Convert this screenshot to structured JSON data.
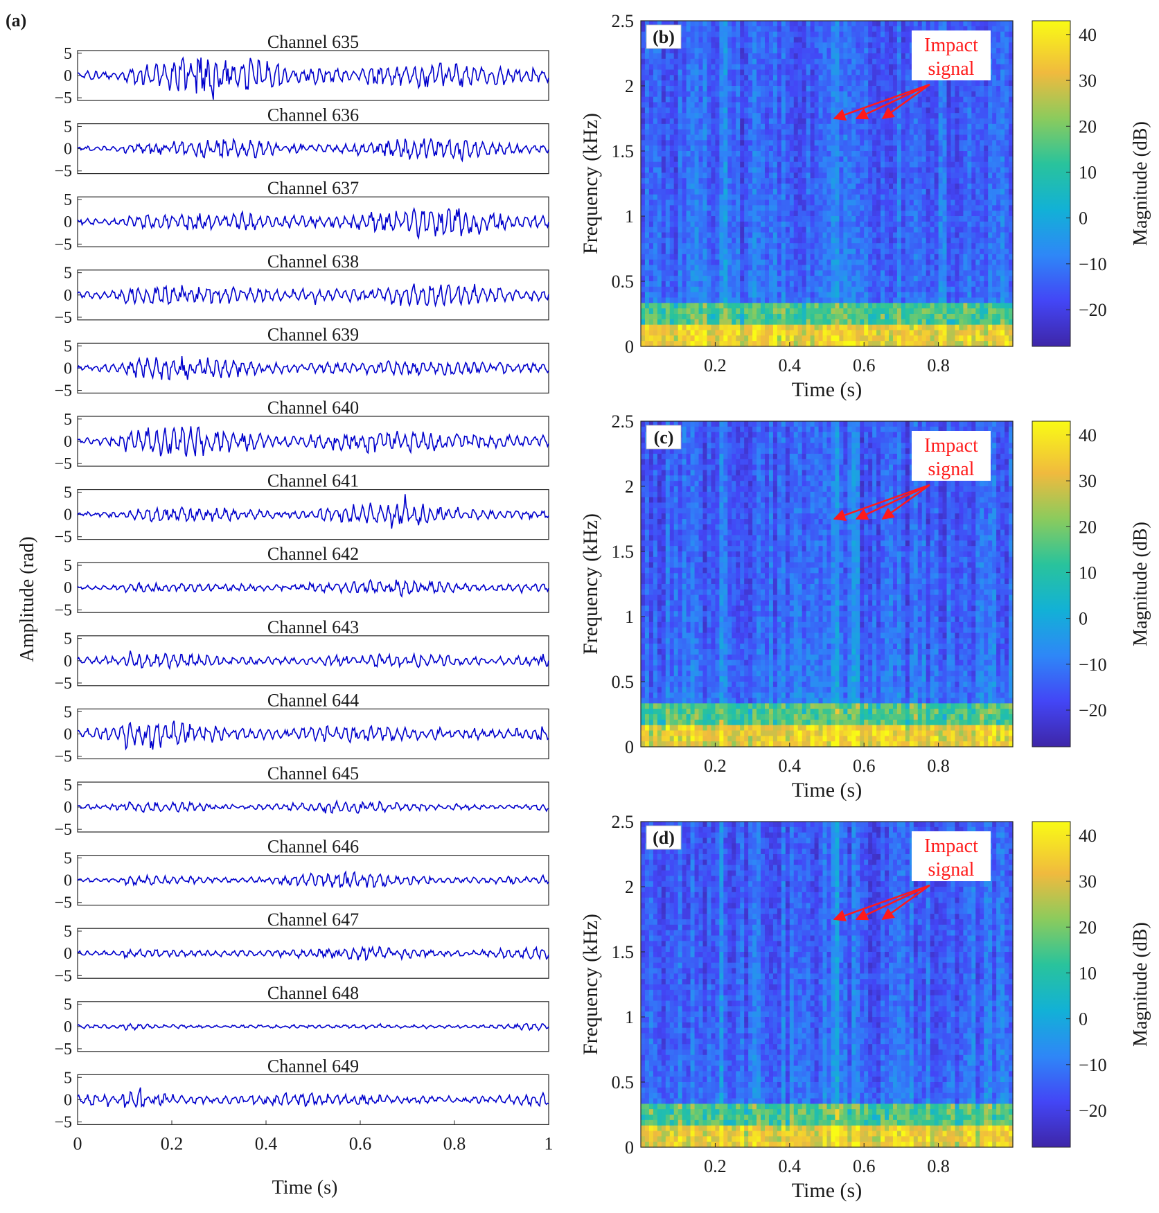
{
  "panels": {
    "a": "(a)",
    "b": "(b)",
    "c": "(c)",
    "d": "(d)"
  },
  "annotation": {
    "line1": "Impact",
    "line2": "signal",
    "color": "#ff1a1a"
  },
  "colors": {
    "trace": "#0000cc",
    "axis": "#262626"
  },
  "chart_data": [
    {
      "type": "line",
      "panel": "(a)",
      "xlabel": "Time (s)",
      "ylabel": "Amplitude (rad)",
      "xlim": [
        0,
        1
      ],
      "ylim": [
        -5,
        5
      ],
      "xticks": [
        "0",
        "0.2",
        "0.4",
        "0.6",
        "0.8",
        "1"
      ],
      "yticks": [
        "5",
        "0",
        "−5"
      ],
      "series": [
        {
          "name": "Channel 635",
          "amp": 4.5
        },
        {
          "name": "Channel 636",
          "amp": 2.6
        },
        {
          "name": "Channel 637",
          "amp": 3.6
        },
        {
          "name": "Channel 638",
          "amp": 3.6
        },
        {
          "name": "Channel 639",
          "amp": 3.0
        },
        {
          "name": "Channel 640",
          "amp": 3.6
        },
        {
          "name": "Channel 641",
          "amp": 2.6
        },
        {
          "name": "Channel 642",
          "amp": 2.0
        },
        {
          "name": "Channel 643",
          "amp": 2.4
        },
        {
          "name": "Channel 644",
          "amp": 3.2
        },
        {
          "name": "Channel 645",
          "amp": 1.5
        },
        {
          "name": "Channel 646",
          "amp": 1.8
        },
        {
          "name": "Channel 647",
          "amp": 1.8
        },
        {
          "name": "Channel 648",
          "amp": 0.9
        },
        {
          "name": "Channel 649",
          "amp": 2.2
        }
      ]
    },
    {
      "type": "heatmap",
      "panel": "(b)",
      "xlabel": "Time (s)",
      "ylabel": "Frequency (kHz)",
      "colorbar_label": "Magnitude (dB)",
      "xlim": [
        0,
        1
      ],
      "ylim": [
        0,
        2.5
      ],
      "clim": [
        -28,
        43
      ],
      "xticks": [
        "0.2",
        "0.4",
        "0.6",
        "0.8"
      ],
      "yticks": [
        "0",
        "0.5",
        "1",
        "1.5",
        "2",
        "2.5"
      ],
      "cbar_ticks": [
        "40",
        "30",
        "20",
        "10",
        "0",
        "−10",
        "−20"
      ],
      "impact_times_s": [
        0.52,
        0.58,
        0.65
      ],
      "impact_freq_khz": 1.75
    },
    {
      "type": "heatmap",
      "panel": "(c)",
      "xlabel": "Time (s)",
      "ylabel": "Frequency (kHz)",
      "colorbar_label": "Magnitude (dB)",
      "xlim": [
        0,
        1
      ],
      "ylim": [
        0,
        2.5
      ],
      "clim": [
        -28,
        43
      ],
      "xticks": [
        "0.2",
        "0.4",
        "0.6",
        "0.8"
      ],
      "yticks": [
        "0",
        "0.5",
        "1",
        "1.5",
        "2",
        "2.5"
      ],
      "cbar_ticks": [
        "40",
        "30",
        "20",
        "10",
        "0",
        "−10",
        "−20"
      ],
      "impact_times_s": [
        0.52,
        0.58,
        0.65
      ],
      "impact_freq_khz": 1.75
    },
    {
      "type": "heatmap",
      "panel": "(d)",
      "xlabel": "Time (s)",
      "ylabel": "Frequency (kHz)",
      "colorbar_label": "Magnitude (dB)",
      "xlim": [
        0,
        1
      ],
      "ylim": [
        0,
        2.5
      ],
      "clim": [
        -28,
        43
      ],
      "xticks": [
        "0.2",
        "0.4",
        "0.6",
        "0.8"
      ],
      "yticks": [
        "0",
        "0.5",
        "1",
        "1.5",
        "2",
        "2.5"
      ],
      "cbar_ticks": [
        "40",
        "30",
        "20",
        "10",
        "0",
        "−10",
        "−20"
      ],
      "impact_times_s": [
        0.52,
        0.58,
        0.65
      ],
      "impact_freq_khz": 1.75
    }
  ]
}
